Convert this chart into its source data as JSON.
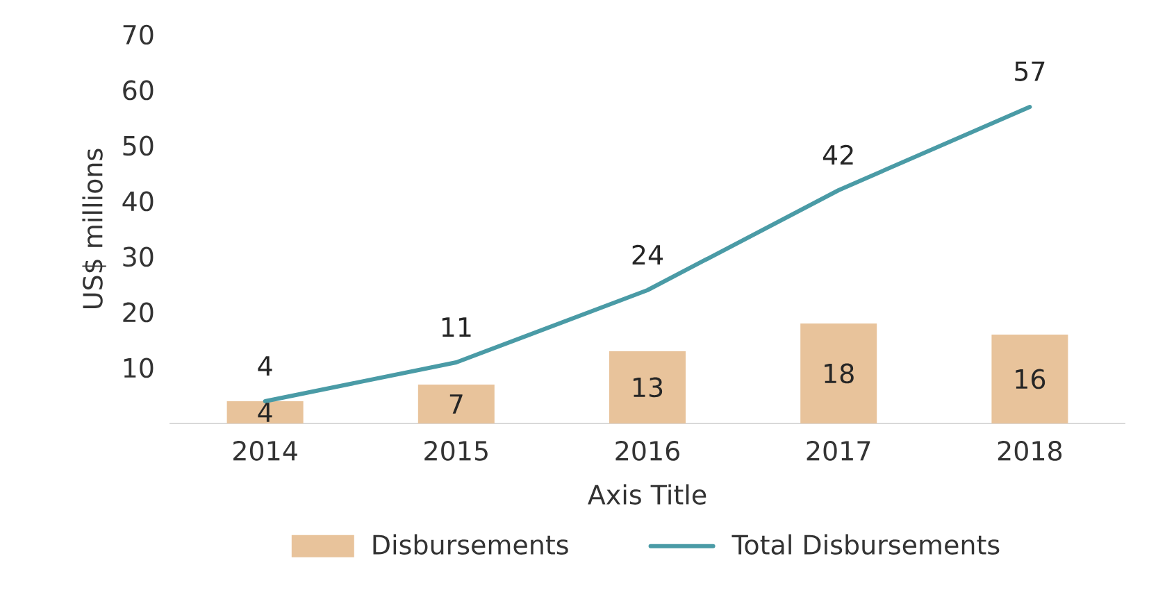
{
  "chart_data": {
    "type": "bar",
    "xlabel": "Axis Title",
    "ylabel": "US$ millions",
    "categories": [
      "2014",
      "2015",
      "2016",
      "2017",
      "2018"
    ],
    "series": [
      {
        "name": "Disbursements",
        "color": "#e8c39b",
        "values": [
          4,
          7,
          13,
          18,
          16
        ]
      },
      {
        "name": "Total Disbursements",
        "type": "line",
        "color": "#4a9ba6",
        "values": [
          4,
          11,
          24,
          42,
          57
        ]
      }
    ],
    "ylim": [
      0,
      70
    ],
    "yticks": [
      10,
      20,
      30,
      40,
      50,
      60,
      70
    ],
    "data_labels": true,
    "legend": "bottom",
    "grid": false,
    "marker": "none"
  }
}
